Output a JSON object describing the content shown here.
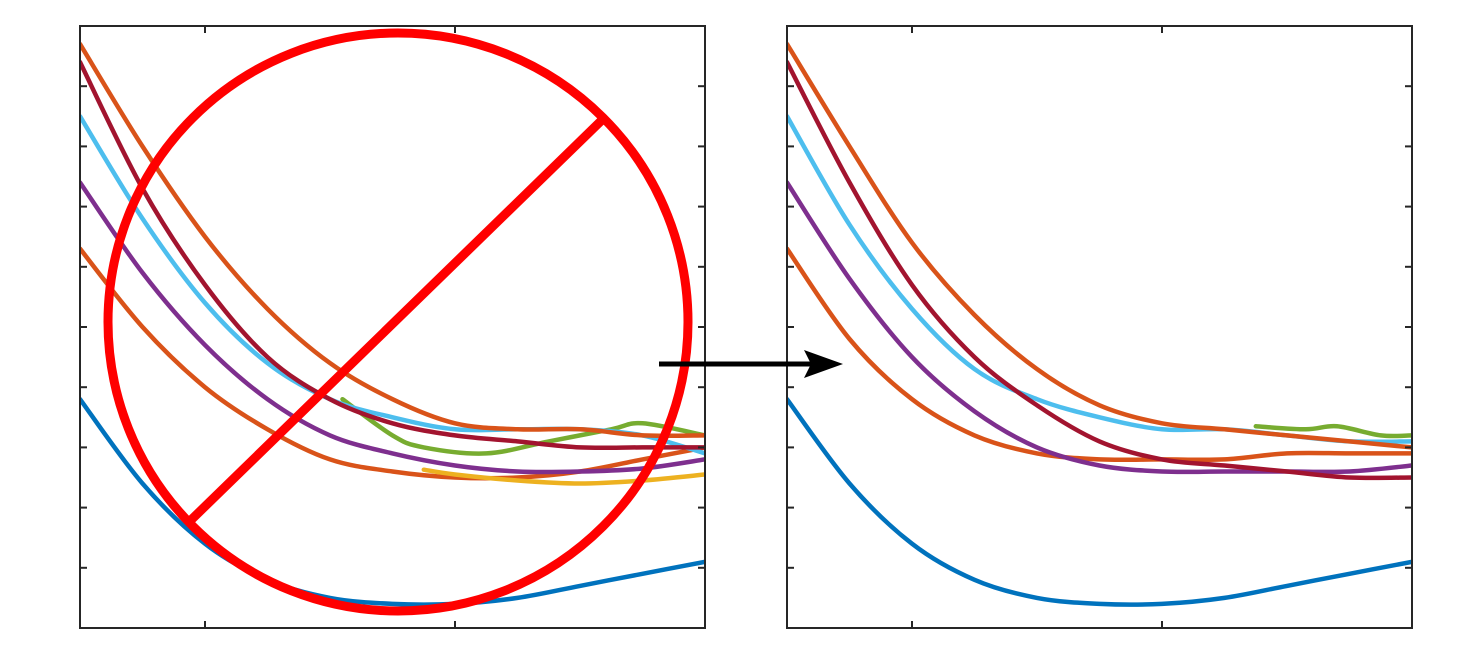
{
  "chart_data": [
    {
      "type": "line",
      "panel": "before",
      "title": "",
      "xlabel": "",
      "ylabel": "",
      "xlim": [
        0,
        1
      ],
      "ylim": [
        0,
        1
      ],
      "grid": false,
      "overlay": "prohibition-sign",
      "series": [
        {
          "color": "#0072BD",
          "x": [
            0.0,
            0.1,
            0.2,
            0.3,
            0.4,
            0.5,
            0.6,
            0.7,
            0.8,
            0.9,
            1.0
          ],
          "y": [
            0.38,
            0.24,
            0.14,
            0.08,
            0.05,
            0.04,
            0.04,
            0.05,
            0.07,
            0.09,
            0.11
          ]
        },
        {
          "color": "#D95319",
          "x": [
            0.0,
            0.1,
            0.2,
            0.3,
            0.4,
            0.5,
            0.6,
            0.7,
            0.8,
            0.9,
            1.0
          ],
          "y": [
            0.63,
            0.5,
            0.4,
            0.33,
            0.28,
            0.26,
            0.25,
            0.25,
            0.26,
            0.28,
            0.3
          ]
        },
        {
          "color": "#EDB120",
          "x": [
            0.55,
            0.6,
            0.7,
            0.8,
            0.9,
            1.0
          ],
          "y": [
            0.263,
            0.255,
            0.245,
            0.24,
            0.245,
            0.255
          ]
        },
        {
          "color": "#7E2F8E",
          "x": [
            0.0,
            0.1,
            0.2,
            0.3,
            0.4,
            0.5,
            0.6,
            0.7,
            0.8,
            0.9,
            1.0
          ],
          "y": [
            0.74,
            0.59,
            0.47,
            0.38,
            0.32,
            0.29,
            0.27,
            0.26,
            0.26,
            0.265,
            0.28
          ]
        },
        {
          "color": "#77AC30",
          "x": [
            0.42,
            0.5,
            0.55,
            0.65,
            0.75,
            0.85,
            0.9,
            1.0
          ],
          "y": [
            0.38,
            0.32,
            0.3,
            0.29,
            0.31,
            0.33,
            0.34,
            0.32
          ]
        },
        {
          "color": "#4DBEEE",
          "x": [
            0.0,
            0.1,
            0.2,
            0.3,
            0.4,
            0.5,
            0.6,
            0.7,
            0.8,
            0.9,
            1.0
          ],
          "y": [
            0.85,
            0.68,
            0.54,
            0.44,
            0.38,
            0.35,
            0.33,
            0.33,
            0.33,
            0.32,
            0.29
          ]
        },
        {
          "color": "#A2142F",
          "x": [
            0.0,
            0.1,
            0.2,
            0.3,
            0.4,
            0.5,
            0.6,
            0.7,
            0.8,
            0.9,
            1.0
          ],
          "y": [
            0.94,
            0.73,
            0.57,
            0.45,
            0.38,
            0.34,
            0.32,
            0.31,
            0.3,
            0.3,
            0.3
          ]
        },
        {
          "color": "#D95319",
          "x": [
            0.0,
            0.1,
            0.2,
            0.3,
            0.4,
            0.5,
            0.6,
            0.7,
            0.8,
            0.9,
            1.0
          ],
          "y": [
            0.97,
            0.8,
            0.65,
            0.53,
            0.44,
            0.38,
            0.34,
            0.33,
            0.33,
            0.32,
            0.32
          ]
        }
      ]
    },
    {
      "type": "line",
      "panel": "after",
      "title": "",
      "xlabel": "",
      "ylabel": "",
      "xlim": [
        0,
        1
      ],
      "ylim": [
        0,
        1
      ],
      "grid": false,
      "series": [
        {
          "color": "#0072BD",
          "x": [
            0.0,
            0.1,
            0.2,
            0.3,
            0.4,
            0.5,
            0.6,
            0.7,
            0.8,
            0.9,
            1.0
          ],
          "y": [
            0.38,
            0.24,
            0.14,
            0.08,
            0.05,
            0.04,
            0.04,
            0.05,
            0.07,
            0.09,
            0.11
          ]
        },
        {
          "color": "#D95319",
          "x": [
            0.0,
            0.1,
            0.2,
            0.3,
            0.4,
            0.5,
            0.6,
            0.7,
            0.8,
            0.9,
            1.0
          ],
          "y": [
            0.63,
            0.48,
            0.38,
            0.32,
            0.29,
            0.28,
            0.28,
            0.28,
            0.29,
            0.29,
            0.29
          ]
        },
        {
          "color": "#7E2F8E",
          "x": [
            0.0,
            0.1,
            0.2,
            0.3,
            0.4,
            0.5,
            0.6,
            0.7,
            0.8,
            0.9,
            1.0
          ],
          "y": [
            0.74,
            0.58,
            0.45,
            0.36,
            0.3,
            0.27,
            0.26,
            0.26,
            0.26,
            0.26,
            0.27
          ]
        },
        {
          "color": "#4DBEEE",
          "x": [
            0.0,
            0.1,
            0.2,
            0.3,
            0.4,
            0.5,
            0.6,
            0.7,
            0.8,
            0.9,
            1.0
          ],
          "y": [
            0.85,
            0.67,
            0.53,
            0.43,
            0.38,
            0.35,
            0.33,
            0.33,
            0.32,
            0.31,
            0.31
          ]
        },
        {
          "color": "#A2142F",
          "x": [
            0.0,
            0.1,
            0.2,
            0.3,
            0.4,
            0.5,
            0.6,
            0.7,
            0.8,
            0.9,
            1.0
          ],
          "y": [
            0.94,
            0.74,
            0.57,
            0.45,
            0.37,
            0.31,
            0.28,
            0.27,
            0.26,
            0.25,
            0.25
          ]
        },
        {
          "color": "#D95319",
          "x": [
            0.0,
            0.1,
            0.2,
            0.3,
            0.4,
            0.5,
            0.6,
            0.7,
            0.8,
            0.9,
            1.0
          ],
          "y": [
            0.97,
            0.8,
            0.64,
            0.52,
            0.43,
            0.37,
            0.34,
            0.33,
            0.32,
            0.31,
            0.3
          ]
        },
        {
          "color": "#77AC30",
          "x": [
            0.75,
            0.83,
            0.88,
            0.95,
            1.0
          ],
          "y": [
            0.335,
            0.33,
            0.335,
            0.32,
            0.32
          ]
        }
      ]
    }
  ],
  "annotations": {
    "arrow": {
      "color": "#000000"
    },
    "prohibition_sign": {
      "color": "#FF0000"
    }
  }
}
